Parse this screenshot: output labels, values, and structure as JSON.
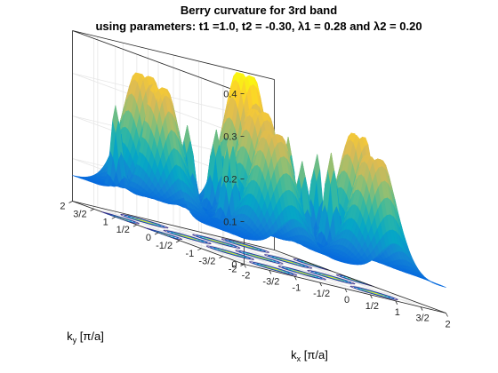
{
  "chart_data": {
    "type": "surface",
    "title": "Berry curvature for 3rd band",
    "subtitle": "using parameters: t1 =1.0, t2 = -0.30, λ1 = 0.28 and λ2 = 0.20",
    "xlabel": {
      "main": "k",
      "sub": "x",
      "rest": " [π/a]"
    },
    "ylabel": {
      "main": "k",
      "sub": "y",
      "rest": " [π/a]"
    },
    "zlabel": "",
    "x_ticks": [
      "-2",
      "-3/2",
      "-1",
      "-1/2",
      "0",
      "1/2",
      "1",
      "3/2",
      "2"
    ],
    "y_ticks": [
      "-2",
      "-3/2",
      "-1",
      "-1/2",
      "0",
      "1/2",
      "1",
      "3/2",
      "2"
    ],
    "z_ticks": [
      "0",
      "0.1",
      "0.2",
      "0.3",
      "0.4"
    ],
    "xlim": [
      -2,
      2
    ],
    "ylim": [
      -2,
      2
    ],
    "zlim": [
      0,
      0.4
    ],
    "colormap": "parula",
    "colormap_stops": [
      "#352a87",
      "#0363e1",
      "#1485d4",
      "#06a7c6",
      "#38b99e",
      "#92bf73",
      "#d9ba56",
      "#fcce2e",
      "#f9fb0e"
    ],
    "grid": true,
    "contours_on_floor": true,
    "peaks": [
      {
        "kx": 0,
        "ky": 0,
        "z": 0.33,
        "shape": "crater"
      },
      {
        "kx": -1,
        "ky": 1.5,
        "z": 0.33,
        "shape": "crater"
      },
      {
        "kx": 1,
        "ky": 1.5,
        "z": 0.4,
        "shape": "crater"
      },
      {
        "kx": -2,
        "ky": 0,
        "z": 0.33,
        "shape": "crater"
      },
      {
        "kx": 2,
        "ky": 0,
        "z": 0.33,
        "shape": "crater"
      },
      {
        "kx": 1,
        "ky": -1.5,
        "z": 0.3,
        "shape": "crater"
      },
      {
        "kx": -1,
        "ky": -1.5,
        "z": 0.3,
        "shape": "crater"
      },
      {
        "kx": 1,
        "ky": 0.5,
        "z": 0.23,
        "shape": "spike"
      },
      {
        "kx": -1,
        "ky": -0.5,
        "z": 0.23,
        "shape": "spike"
      },
      {
        "kx": 1,
        "ky": -0.5,
        "z": 0.23,
        "shape": "spike"
      },
      {
        "kx": 2,
        "ky": 1,
        "z": 0.2,
        "shape": "spike"
      },
      {
        "kx": -2,
        "ky": 1,
        "z": 0.2,
        "shape": "spike"
      },
      {
        "kx": -1,
        "ky": 0.5,
        "z": 0.2,
        "shape": "spike"
      },
      {
        "kx": 0,
        "ky": -1,
        "z": 0.2,
        "shape": "spike"
      },
      {
        "kx": 0,
        "ky": 1,
        "z": 0.2,
        "shape": "spike"
      }
    ],
    "background_level": 0.06
  }
}
